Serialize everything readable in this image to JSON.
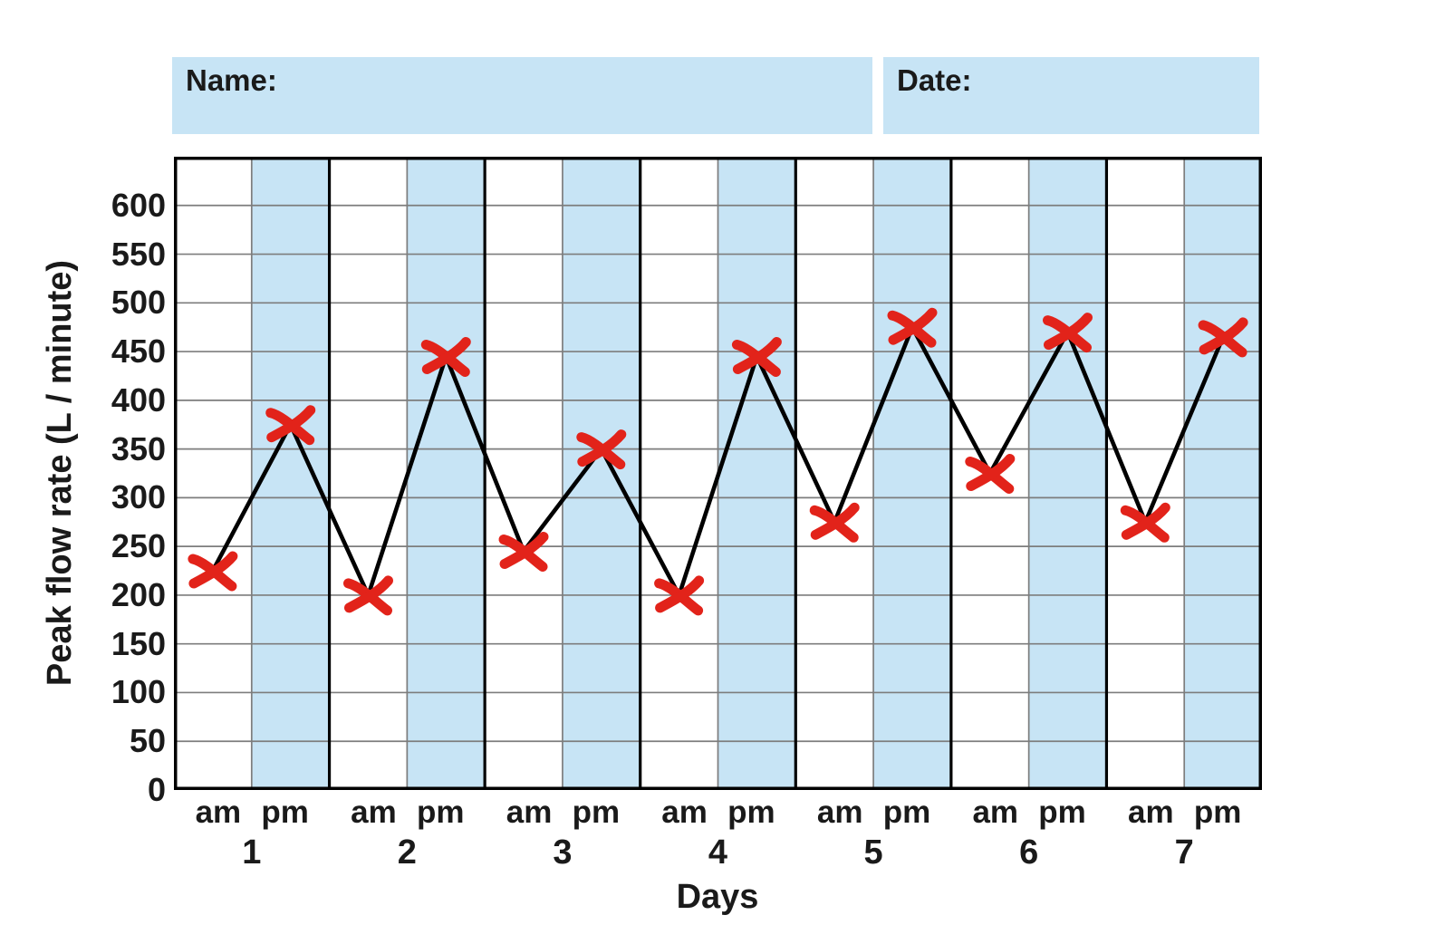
{
  "worksheet": {
    "name_label": "Name:",
    "date_label": "Date:",
    "box_color": "#c7e4f5"
  },
  "chart_data": {
    "type": "line",
    "xlabel": "Days",
    "ylabel": "Peak flow rate (L / minute)",
    "ylim": [
      0,
      650
    ],
    "ytick_step": 50,
    "yticks": [
      600,
      550,
      500,
      450,
      400,
      350,
      300,
      250,
      200,
      150,
      100,
      50,
      0
    ],
    "grid": true,
    "days": [
      "1",
      "2",
      "3",
      "4",
      "5",
      "6",
      "7"
    ],
    "time_labels": [
      "am",
      "pm"
    ],
    "series": [
      {
        "name": "peak-flow-readings",
        "marker": "x",
        "points": [
          {
            "day": "1",
            "time": "am",
            "value": 225
          },
          {
            "day": "1",
            "time": "pm",
            "value": 375
          },
          {
            "day": "2",
            "time": "am",
            "value": 200
          },
          {
            "day": "2",
            "time": "pm",
            "value": 445
          },
          {
            "day": "3",
            "time": "am",
            "value": 245
          },
          {
            "day": "3",
            "time": "pm",
            "value": 350
          },
          {
            "day": "4",
            "time": "am",
            "value": 200
          },
          {
            "day": "4",
            "time": "pm",
            "value": 445
          },
          {
            "day": "5",
            "time": "am",
            "value": 275
          },
          {
            "day": "5",
            "time": "pm",
            "value": 475
          },
          {
            "day": "6",
            "time": "am",
            "value": 325
          },
          {
            "day": "6",
            "time": "pm",
            "value": 470
          },
          {
            "day": "7",
            "time": "am",
            "value": 275
          },
          {
            "day": "7",
            "time": "pm",
            "value": 465
          }
        ]
      }
    ],
    "colors": {
      "marker": "#e2231a",
      "line": "#000000",
      "pm_band": "#c7e4f5",
      "gridline": "#7d7d7d",
      "day_separator": "#000000",
      "border": "#000000"
    },
    "legend": "none"
  }
}
